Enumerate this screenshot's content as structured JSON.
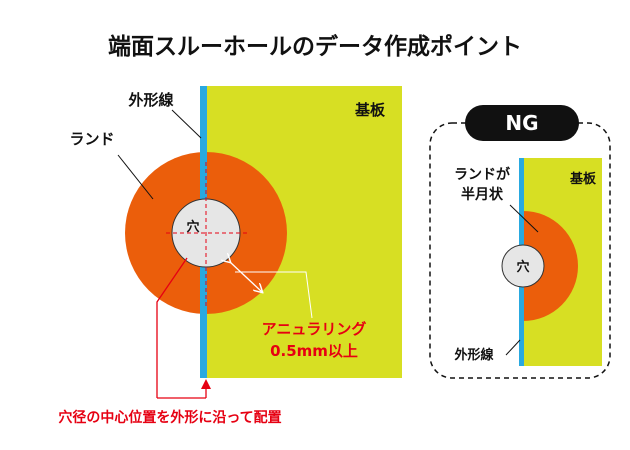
{
  "title": "端面スルーホールのデータ作成ポイント",
  "main_diagram": {
    "outline_label": "外形線",
    "land_label": "ランド",
    "substrate_label": "基板",
    "hole_label": "穴",
    "annular_ring_label_line1": "アニュラリング",
    "annular_ring_label_line2": "0.5mm以上",
    "center_note": "穴径の中心位置を外形に沿って配置"
  },
  "ng_example": {
    "badge": "NG",
    "land_label_line1": "ランドが",
    "land_label_line2": "半月状",
    "substrate_label": "基板",
    "hole_label": "穴",
    "outline_label": "外形線"
  },
  "colors": {
    "substrate": "#d7df23",
    "land": "#eb5e0b",
    "outline": "#29a9e0",
    "hole": "#e6e6e6",
    "accent_red": "#e60012",
    "text": "#111111"
  }
}
